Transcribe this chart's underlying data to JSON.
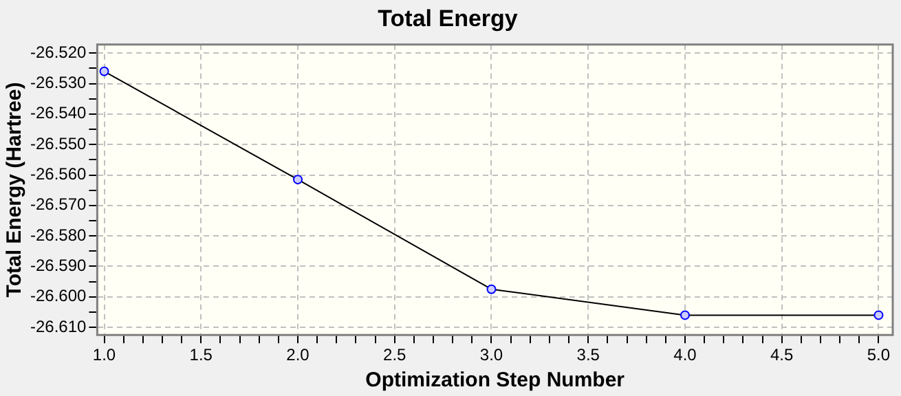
{
  "chart_data": {
    "type": "line",
    "title": "Total Energy",
    "xlabel": "Optimization Step Number",
    "ylabel": "Total Energy (Hartree)",
    "x": [
      1,
      2,
      3,
      4,
      5
    ],
    "series": [
      {
        "color": "#000000",
        "colors": [
          "#0000ff",
          "#0000ff",
          "#0000ff",
          "#0000ff",
          "#0000ff"
        ],
        "values": [
          -26.526,
          -26.5615,
          -26.5975,
          -26.606,
          -26.606
        ]
      }
    ],
    "xlim": [
      0.964,
      5.073
    ],
    "ylim": [
      -26.6125,
      -26.5172
    ],
    "xticks": [
      {
        "value": 1,
        "label": "1.0"
      },
      {
        "value": 1.1,
        "label": null
      },
      {
        "value": 1.2,
        "label": null
      },
      {
        "value": 1.3,
        "label": null
      },
      {
        "value": 1.4,
        "label": null
      },
      {
        "value": 1.5,
        "label": "1.5"
      },
      {
        "value": 1.6,
        "label": null
      },
      {
        "value": 1.7,
        "label": null
      },
      {
        "value": 1.8,
        "label": null
      },
      {
        "value": 1.9,
        "label": null
      },
      {
        "value": 2,
        "label": "2.0"
      },
      {
        "value": 2.1,
        "label": null
      },
      {
        "value": 2.2,
        "label": null
      },
      {
        "value": 2.3,
        "label": null
      },
      {
        "value": 2.4,
        "label": null
      },
      {
        "value": 2.5,
        "label": "2.5"
      },
      {
        "value": 2.6,
        "label": null
      },
      {
        "value": 2.7,
        "label": null
      },
      {
        "value": 2.8,
        "label": null
      },
      {
        "value": 2.9,
        "label": null
      },
      {
        "value": 3,
        "label": "3.0"
      },
      {
        "value": 3.1,
        "label": null
      },
      {
        "value": 3.2,
        "label": null
      },
      {
        "value": 3.3,
        "label": null
      },
      {
        "value": 3.4,
        "label": null
      },
      {
        "value": 3.5,
        "label": "3.5"
      },
      {
        "value": 3.6,
        "label": null
      },
      {
        "value": 3.7,
        "label": null
      },
      {
        "value": 3.8,
        "label": null
      },
      {
        "value": 3.9,
        "label": null
      },
      {
        "value": 4,
        "label": "4.0"
      },
      {
        "value": 4.1,
        "label": null
      },
      {
        "value": 4.2,
        "label": null
      },
      {
        "value": 4.3,
        "label": null
      },
      {
        "value": 4.4,
        "label": null
      },
      {
        "value": 4.5,
        "label": "4.5"
      },
      {
        "value": 4.6,
        "label": null
      },
      {
        "value": 4.7,
        "label": null
      },
      {
        "value": 4.8,
        "label": null
      },
      {
        "value": 4.9,
        "label": null
      },
      {
        "value": 5,
        "label": "5.0"
      }
    ],
    "yticks": [
      {
        "value": -26.52,
        "label": "-26.520"
      },
      {
        "value": -26.525,
        "label": null
      },
      {
        "value": -26.53,
        "label": "-26.530"
      },
      {
        "value": -26.535,
        "label": null
      },
      {
        "value": -26.54,
        "label": "-26.540"
      },
      {
        "value": -26.545,
        "label": null
      },
      {
        "value": -26.55,
        "label": "-26.550"
      },
      {
        "value": -26.555,
        "label": null
      },
      {
        "value": -26.56,
        "label": "-26.560"
      },
      {
        "value": -26.565,
        "label": null
      },
      {
        "value": -26.57,
        "label": "-26.570"
      },
      {
        "value": -26.575,
        "label": null
      },
      {
        "value": -26.58,
        "label": "-26.580"
      },
      {
        "value": -26.585,
        "label": null
      },
      {
        "value": -26.59,
        "label": "-26.590"
      },
      {
        "value": -26.595,
        "label": null
      },
      {
        "value": -26.6,
        "label": "-26.600"
      },
      {
        "value": -26.605,
        "label": null
      },
      {
        "value": -26.61,
        "label": "-26.610"
      }
    ],
    "grid": true,
    "marker": "circle",
    "line_style": "solid",
    "legend": false
  }
}
